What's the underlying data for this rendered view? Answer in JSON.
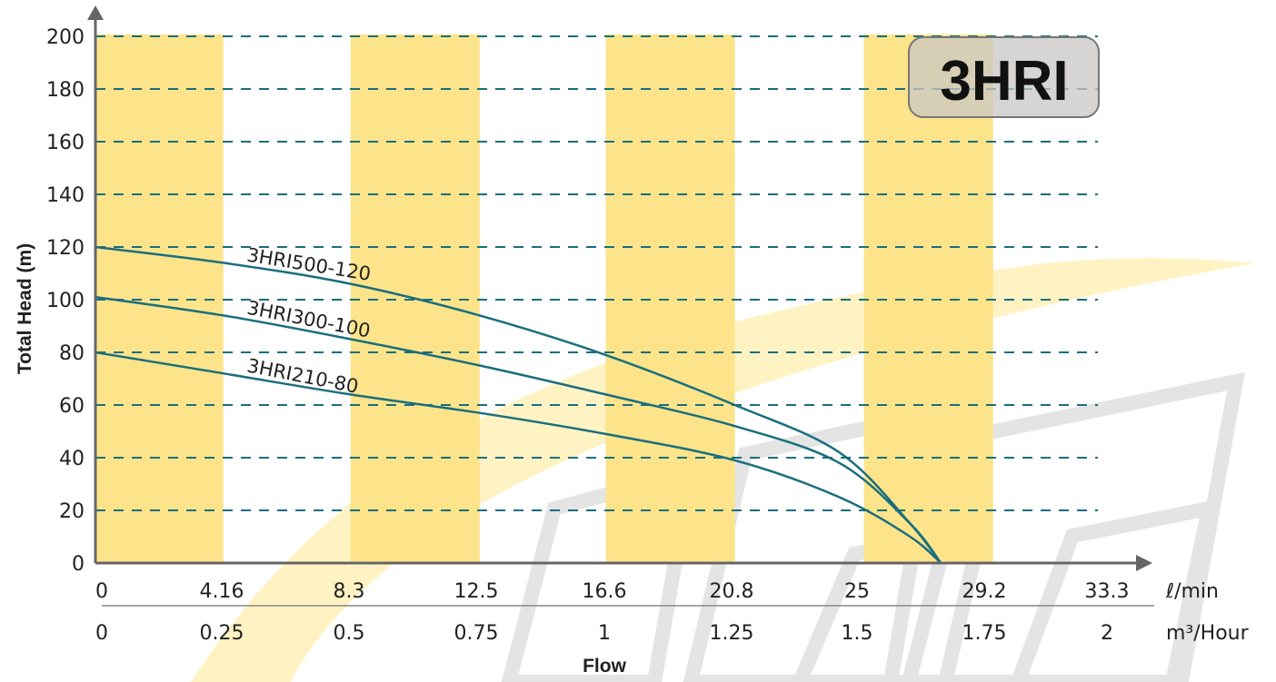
{
  "badge": {
    "label": "3HRI"
  },
  "axes": {
    "y_title": "Total Head (m)",
    "x_title": "Flow",
    "x_unit_primary": "ℓ/min",
    "x_unit_secondary": "m³/Hour"
  },
  "chart_data": {
    "type": "line",
    "title": "3HRI",
    "xlabel": "Flow",
    "ylabel": "Total Head (m)",
    "x_unit": "ℓ/min",
    "x2_unit": "m³/Hour",
    "xlim": [
      0,
      34.5
    ],
    "ylim": [
      0,
      200
    ],
    "x_ticks": [
      "0",
      "4.16",
      "8.3",
      "12.5",
      "16.6",
      "20.8",
      "25",
      "29.2",
      "33.3"
    ],
    "x_tick_values": [
      0,
      4.16,
      8.3,
      12.5,
      16.6,
      20.8,
      25,
      29.2,
      33.3
    ],
    "x2_ticks": [
      "0",
      "0.25",
      "0.5",
      "0.75",
      "1",
      "1.25",
      "1.5",
      "1.75",
      "2"
    ],
    "y_ticks": [
      "0",
      "20",
      "40",
      "60",
      "80",
      "100",
      "120",
      "140",
      "160",
      "180",
      "200"
    ],
    "y_tick_values": [
      0,
      20,
      40,
      60,
      80,
      100,
      120,
      140,
      160,
      180,
      200
    ],
    "grid": "horizontal dashed",
    "line_color": "#1a6e7e",
    "grid_color": "#1a6e7e",
    "band_color": "#fde48a",
    "bands": [
      [
        0,
        4.16
      ],
      [
        8.3,
        12.5
      ],
      [
        16.6,
        20.8
      ],
      [
        25,
        29.2
      ]
    ],
    "series": [
      {
        "name": "3HRI500-120",
        "x": [
          0,
          4.16,
          8.3,
          12.5,
          16.6,
          20.8,
          24.2,
          26.5,
          27.5
        ],
        "y": [
          120,
          114,
          106,
          94,
          79,
          60,
          42,
          15,
          0
        ]
      },
      {
        "name": "3HRI300-100",
        "x": [
          0,
          4.16,
          8.3,
          12.5,
          16.6,
          20.8,
          24.2,
          26.5,
          27.5
        ],
        "y": [
          101,
          94,
          85,
          75,
          64,
          52,
          38,
          15,
          0
        ]
      },
      {
        "name": "3HRI210-80",
        "x": [
          0,
          4.16,
          8.3,
          12.5,
          16.6,
          20.8,
          24.2,
          26.5,
          27.5
        ],
        "y": [
          80,
          72,
          64,
          57,
          49,
          39,
          25,
          10,
          0
        ]
      }
    ]
  }
}
